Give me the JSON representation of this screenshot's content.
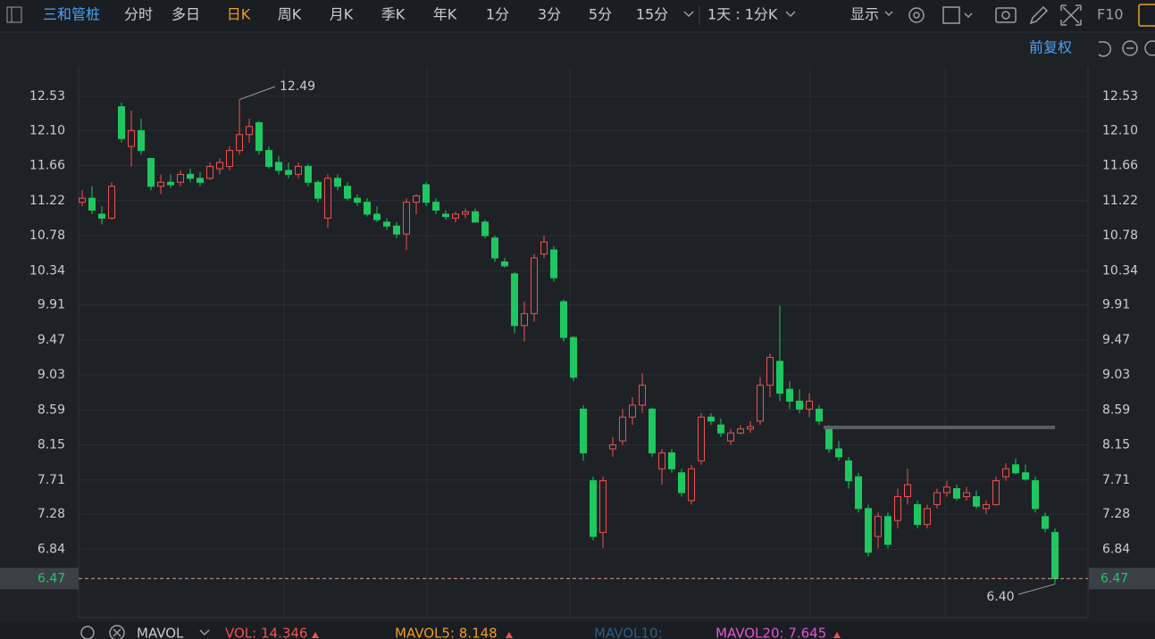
{
  "toolbar": {
    "stock": "三和管桩",
    "periods": [
      "分时",
      "多日",
      "日K",
      "周K",
      "月K",
      "季K",
      "年K",
      "1分",
      "3分",
      "5分",
      "15分"
    ],
    "multi": "1天 : 1分K",
    "display": "显示",
    "f10": "F10"
  },
  "adjust": "前复权",
  "indicator_bar": {
    "name": "MAVOL",
    "vol": "VOL: 14.346",
    "mavol5": "MAVOL5: 8.148",
    "mavol10": "MAVOL10:",
    "mavol20": "MAVOL20: 7.645"
  },
  "chart_data": {
    "type": "candlestick",
    "up_color": "#f0524f",
    "down_color": "#1fc760",
    "ylim": [
      5.98,
      12.9
    ],
    "yticks": [
      12.53,
      {
        "value": 12.1,
        "label": "12.10"
      },
      11.66,
      11.22,
      10.78,
      10.34,
      9.91,
      9.47,
      9.03,
      8.59,
      8.15,
      7.71,
      7.28,
      6.84
    ],
    "grid": true,
    "last_price": 6.47,
    "high_annotation": 12.49,
    "low_annotation": {
      "value": 6.4,
      "label": "6.40"
    },
    "drawn_line": 8.37,
    "ohlc": [
      [
        11.2,
        11.35,
        11.15,
        11.25
      ],
      [
        11.25,
        11.4,
        11.05,
        11.1
      ],
      [
        11.05,
        11.15,
        10.92,
        11.0
      ],
      [
        11.0,
        11.45,
        10.98,
        11.4
      ],
      [
        12.4,
        12.45,
        11.95,
        12.0
      ],
      [
        11.9,
        12.35,
        11.65,
        12.1
      ],
      [
        12.1,
        12.25,
        11.8,
        11.85
      ],
      [
        11.75,
        11.75,
        11.35,
        11.4
      ],
      [
        11.4,
        11.55,
        11.3,
        11.45
      ],
      [
        11.45,
        11.55,
        11.38,
        11.42
      ],
      [
        11.45,
        11.6,
        11.4,
        11.55
      ],
      [
        11.55,
        11.62,
        11.45,
        11.5
      ],
      [
        11.5,
        11.58,
        11.4,
        11.45
      ],
      [
        11.5,
        11.7,
        11.48,
        11.65
      ],
      [
        11.62,
        11.75,
        11.55,
        11.7
      ],
      [
        11.65,
        11.9,
        11.6,
        11.85
      ],
      [
        11.85,
        12.49,
        11.8,
        12.05
      ],
      [
        12.05,
        12.25,
        11.95,
        12.15
      ],
      [
        12.2,
        12.22,
        11.8,
        11.85
      ],
      [
        11.85,
        11.9,
        11.62,
        11.65
      ],
      [
        11.7,
        11.78,
        11.55,
        11.6
      ],
      [
        11.6,
        11.7,
        11.5,
        11.55
      ],
      [
        11.55,
        11.7,
        11.5,
        11.65
      ],
      [
        11.65,
        11.68,
        11.4,
        11.45
      ],
      [
        11.45,
        11.48,
        11.2,
        11.25
      ],
      [
        11.0,
        11.55,
        10.88,
        11.5
      ],
      [
        11.5,
        11.55,
        11.35,
        11.4
      ],
      [
        11.4,
        11.45,
        11.22,
        11.25
      ],
      [
        11.25,
        11.3,
        11.15,
        11.2
      ],
      [
        11.2,
        11.25,
        11.02,
        11.05
      ],
      [
        11.05,
        11.15,
        10.95,
        10.98
      ],
      [
        10.95,
        11.0,
        10.85,
        10.9
      ],
      [
        10.9,
        10.95,
        10.75,
        10.8
      ],
      [
        10.8,
        11.25,
        10.6,
        11.2
      ],
      [
        11.2,
        11.3,
        11.05,
        11.28
      ],
      [
        11.42,
        11.45,
        11.15,
        11.2
      ],
      [
        11.2,
        11.25,
        11.05,
        11.1
      ],
      [
        11.05,
        11.1,
        10.98,
        11.02
      ],
      [
        11.0,
        11.08,
        10.95,
        11.05
      ],
      [
        11.05,
        11.12,
        11.0,
        11.08
      ],
      [
        11.08,
        11.12,
        10.95,
        10.95
      ],
      [
        10.95,
        10.98,
        10.75,
        10.78
      ],
      [
        10.75,
        10.78,
        10.45,
        10.5
      ],
      [
        10.45,
        10.5,
        10.38,
        10.4
      ],
      [
        10.3,
        10.32,
        9.55,
        9.65
      ],
      [
        9.65,
        9.95,
        9.45,
        9.8
      ],
      [
        9.8,
        10.55,
        9.7,
        10.5
      ],
      [
        10.55,
        10.78,
        10.5,
        10.7
      ],
      [
        10.6,
        10.65,
        10.2,
        10.25
      ],
      [
        9.95,
        9.98,
        9.45,
        9.5
      ],
      [
        9.5,
        9.52,
        8.95,
        9.0
      ],
      [
        8.6,
        8.65,
        7.95,
        8.05
      ],
      [
        7.7,
        7.75,
        6.95,
        7.0
      ],
      [
        7.05,
        7.75,
        6.85,
        7.7
      ],
      [
        8.1,
        8.25,
        8.0,
        8.15
      ],
      [
        8.2,
        8.6,
        8.15,
        8.5
      ],
      [
        8.5,
        8.75,
        8.4,
        8.65
      ],
      [
        8.65,
        9.05,
        8.55,
        8.9
      ],
      [
        8.6,
        8.62,
        8.0,
        8.05
      ],
      [
        7.85,
        8.1,
        7.65,
        8.05
      ],
      [
        8.05,
        8.1,
        7.8,
        7.85
      ],
      [
        7.8,
        7.85,
        7.5,
        7.55
      ],
      [
        7.45,
        7.9,
        7.4,
        7.85
      ],
      [
        7.95,
        8.55,
        7.9,
        8.5
      ],
      [
        8.5,
        8.55,
        8.4,
        8.45
      ],
      [
        8.4,
        8.48,
        8.25,
        8.3
      ],
      [
        8.2,
        8.35,
        8.15,
        8.3
      ],
      [
        8.3,
        8.4,
        8.28,
        8.35
      ],
      [
        8.35,
        8.45,
        8.3,
        8.38
      ],
      [
        8.45,
        9.0,
        8.4,
        8.9
      ],
      [
        8.9,
        9.3,
        8.75,
        9.25
      ],
      [
        9.2,
        9.9,
        8.7,
        8.8
      ],
      [
        8.85,
        8.95,
        8.6,
        8.7
      ],
      [
        8.7,
        8.85,
        8.55,
        8.6
      ],
      [
        8.6,
        8.8,
        8.5,
        8.7
      ],
      [
        8.6,
        8.65,
        8.4,
        8.45
      ],
      [
        8.35,
        8.4,
        8.05,
        8.1
      ],
      [
        8.1,
        8.2,
        7.95,
        8.0
      ],
      [
        7.95,
        8.0,
        7.6,
        7.7
      ],
      [
        7.75,
        7.8,
        7.3,
        7.35
      ],
      [
        7.35,
        7.4,
        6.75,
        6.8
      ],
      [
        7.0,
        7.3,
        6.85,
        7.25
      ],
      [
        7.25,
        7.3,
        6.85,
        6.9
      ],
      [
        7.2,
        7.6,
        7.1,
        7.5
      ],
      [
        7.5,
        7.85,
        7.4,
        7.65
      ],
      [
        7.4,
        7.45,
        7.1,
        7.15
      ],
      [
        7.15,
        7.4,
        7.1,
        7.35
      ],
      [
        7.4,
        7.6,
        7.35,
        7.55
      ],
      [
        7.55,
        7.7,
        7.5,
        7.62
      ],
      [
        7.6,
        7.65,
        7.45,
        7.48
      ],
      [
        7.5,
        7.62,
        7.45,
        7.55
      ],
      [
        7.5,
        7.58,
        7.35,
        7.38
      ],
      [
        7.35,
        7.45,
        7.28,
        7.4
      ],
      [
        7.4,
        7.75,
        7.38,
        7.7
      ],
      [
        7.75,
        7.92,
        7.7,
        7.85
      ],
      [
        7.9,
        7.98,
        7.78,
        7.8
      ],
      [
        7.8,
        7.9,
        7.7,
        7.72
      ],
      [
        7.7,
        7.75,
        7.3,
        7.35
      ],
      [
        7.25,
        7.3,
        7.05,
        7.1
      ],
      [
        7.05,
        7.1,
        6.4,
        6.47
      ]
    ]
  }
}
